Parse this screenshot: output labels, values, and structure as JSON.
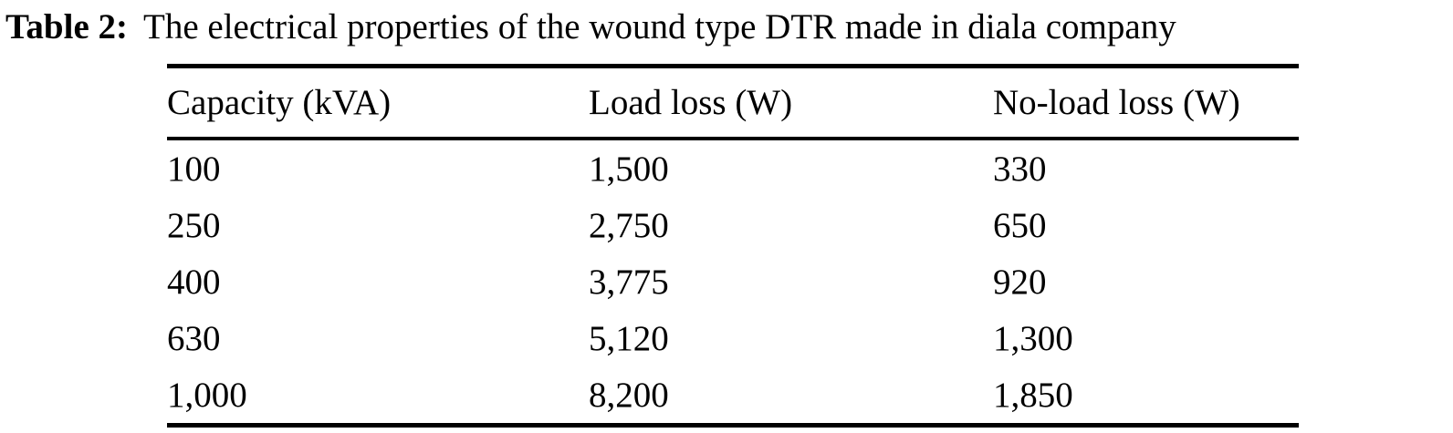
{
  "caption": {
    "label": "Table 2:",
    "text": "The electrical properties of the wound type DTR made in diala company"
  },
  "table": {
    "headers": [
      "Capacity (kVA)",
      "Load loss (W)",
      "No-load loss (W)"
    ],
    "rows": [
      [
        "100",
        "1,500",
        "330"
      ],
      [
        "250",
        "2,750",
        "650"
      ],
      [
        "400",
        "3,775",
        "920"
      ],
      [
        "630",
        "5,120",
        "1,300"
      ],
      [
        "1,000",
        "8,200",
        "1,850"
      ]
    ]
  },
  "colors": {
    "text": "#000000",
    "background": "#ffffff",
    "rule": "#000000"
  }
}
